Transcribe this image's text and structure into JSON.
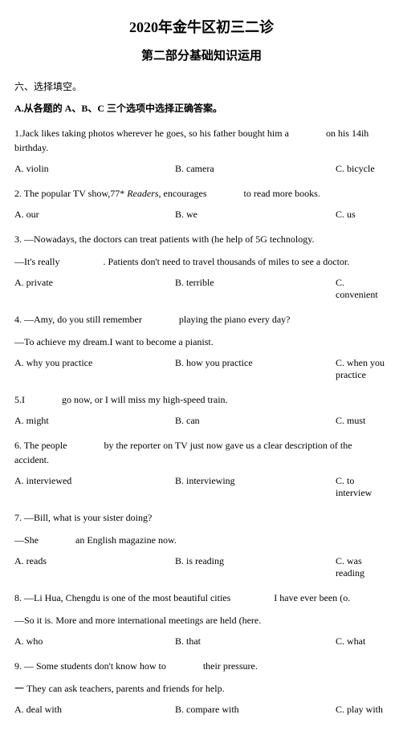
{
  "title": "2020年金牛区初三二诊",
  "subtitle": "第二部分基础知识运用",
  "section": "六、选择填空。",
  "instruction": "A.从各题的 A、B、C 三个选项中选择正确答案。",
  "questions": [
    {
      "num": "1",
      "text": ".Jack likes taking photos wherever he goes, so his father bought him a",
      "tail": "on his 14ih birthday.",
      "a": "A.  violin",
      "b": "B. camera",
      "c": "C. bicycle"
    },
    {
      "num": "2",
      "text": ".  The popular TV show,77* ",
      "italic": "Readers,",
      "text2": " encourages",
      "tail": "to read more books.",
      "a": "A. our",
      "b": "B. we",
      "c": "C. us"
    },
    {
      "num": "3",
      "text": ".  —Nowadays, the doctors can treat patients with (he help of 5G technology.",
      "follow": "—It's really",
      "followtail": ". Patients don't need to travel thousands of miles to see a doctor.",
      "a": "A. private",
      "b": "B. terrible",
      "c": "C. convenient"
    },
    {
      "num": "4",
      "text": ".  —Amy, do you still remember",
      "tail": "playing the piano every day?",
      "follow": "—To achieve my dream.I want to become a pianist.",
      "a": "A. why you practice",
      "b": "B. how you practice",
      "c": "C. when you practice"
    },
    {
      "num": "5",
      "text": ".I",
      "tail": "go now, or I will miss my high-speed train.",
      "a": "A. might",
      "b": "B. can",
      "c": "C. must"
    },
    {
      "num": "6",
      "text": ".  The people",
      "tail": "by the reporter on TV just now gave us a clear description of the accident.",
      "a": "A. interviewed",
      "b": "B. interviewing",
      "c": "C. to interview"
    },
    {
      "num": "7",
      "text": ".  —Bill, what is your sister doing?",
      "follow": "—She",
      "followtail": "an English magazine now.",
      "a": "A. reads",
      "b": "B. is reading",
      "c": "C. was reading"
    },
    {
      "num": "8",
      "text": ".  —Li Hua, Chengdu is one of the most beautiful cities",
      "tail": "I have ever been (o.",
      "follow": "—So it is. More and more international meetings are held (here.",
      "a": "A. who",
      "b": "B. that",
      "c": "C. what"
    },
    {
      "num": "9",
      "text": ".  — Some students don't know how to",
      "tail": "their pressure.",
      "follow": "一 They can ask teachers, parents and friends for help.",
      "a": "A. deal with",
      "b": "B. compare with",
      "c": "C. play with"
    }
  ]
}
